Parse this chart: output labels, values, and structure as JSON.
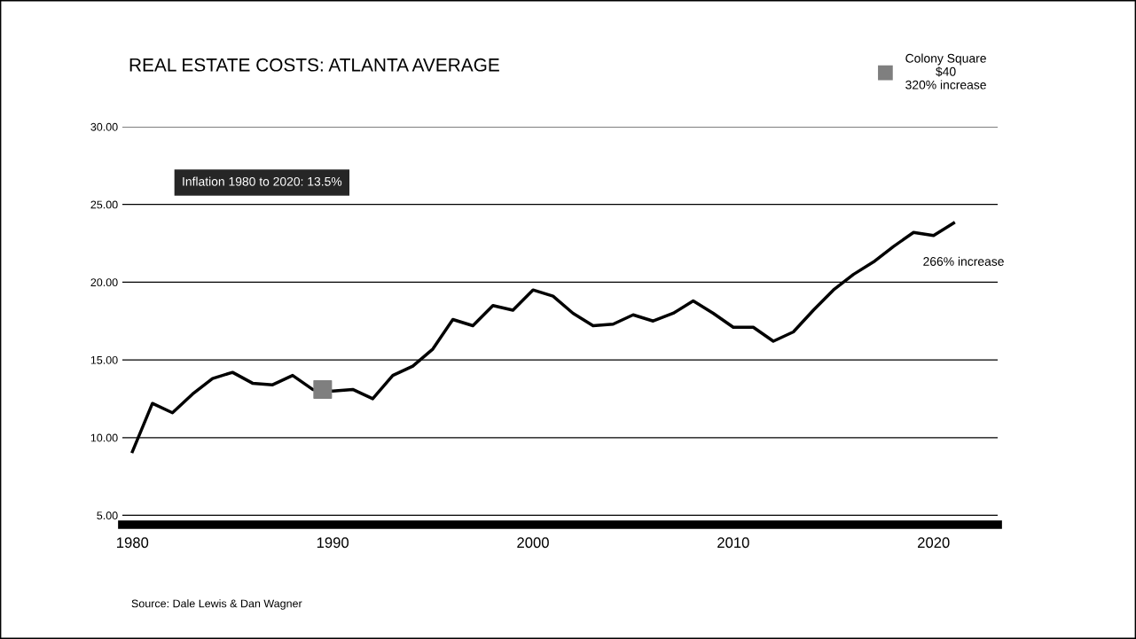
{
  "chart_data": {
    "type": "line",
    "title": "REAL ESTATE COSTS: ATLANTA AVERAGE",
    "x": [
      1980,
      1981,
      1982,
      1983,
      1984,
      1985,
      1986,
      1987,
      1988,
      1989,
      1990,
      1991,
      1992,
      1993,
      1994,
      1995,
      1996,
      1997,
      1998,
      1999,
      2000,
      2001,
      2002,
      2003,
      2004,
      2005,
      2006,
      2007,
      2008,
      2009,
      2010,
      2011,
      2012,
      2013,
      2014,
      2015,
      2016,
      2017,
      2018,
      2019,
      2020,
      2021
    ],
    "series": [
      {
        "color": "#000000",
        "values": [
          9.1,
          12.2,
          11.6,
          12.8,
          13.8,
          14.2,
          13.5,
          13.4,
          14.0,
          13.1,
          13.0,
          13.1,
          12.5,
          14.0,
          14.6,
          15.7,
          17.6,
          17.2,
          18.5,
          18.2,
          19.5,
          19.1,
          18.0,
          17.2,
          17.3,
          17.9,
          17.5,
          18.0,
          18.8,
          18.0,
          17.1,
          17.1,
          16.2,
          16.8,
          18.2,
          19.5,
          20.5,
          21.3,
          22.3,
          23.2,
          23.0,
          23.8
        ]
      },
      {
        "type": "scatter",
        "name": "Colony Square\n$40\n320% increase",
        "color": "#7f7f7f",
        "marker": "square",
        "x": [
          1989.5
        ],
        "values": [
          13.1
        ]
      }
    ],
    "xlim": [
      1979.5,
      2023.2
    ],
    "xticks": [
      1980,
      1990,
      2000,
      2010,
      2020
    ],
    "ylim": [
      4.4,
      30
    ],
    "yticks": [
      {
        "value": 5,
        "label": "5.00"
      },
      {
        "value": 10,
        "label": "10.00"
      },
      {
        "value": 15,
        "label": "15.00"
      },
      {
        "value": 20,
        "label": "20.00"
      },
      {
        "value": 25,
        "label": "25.00"
      },
      {
        "value": 30,
        "label": "30.00"
      }
    ],
    "grid": "y",
    "legend": "top right",
    "line_style": "solid",
    "annotations": [
      "Inflation 1980 to 2020: 13.5%",
      {
        "text": "266% increase",
        "x": 2021,
        "y": 23.8
      },
      "Source: Dale Lewis & Dan Wagner"
    ]
  }
}
